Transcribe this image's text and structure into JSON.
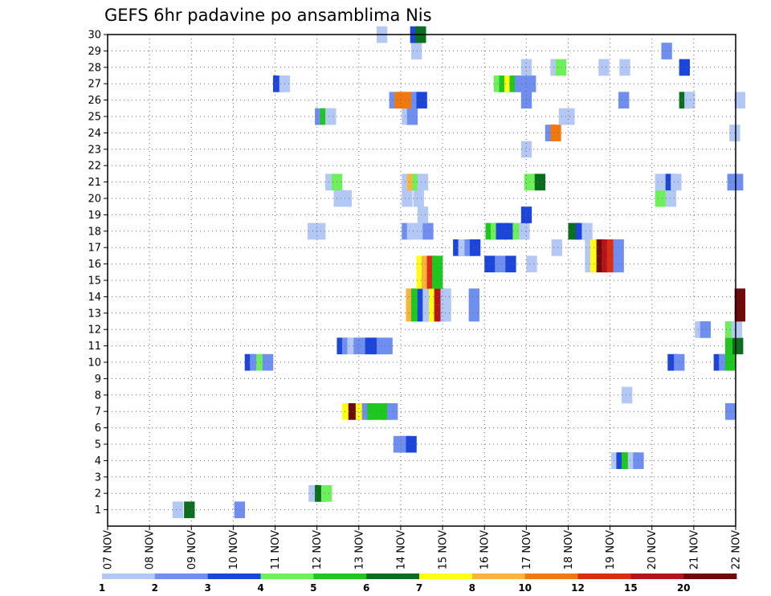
{
  "chart_data": {
    "type": "heatmap",
    "title": "GEFS 6hr padavine po ansamblima Nis",
    "xlabel": "",
    "ylabel": "",
    "x_tick_labels": [
      "07 NOV",
      "08 NOV",
      "09 NOV",
      "10 NOV",
      "11 NOV",
      "12 NOV",
      "13 NOV",
      "14 NOV",
      "15 NOV",
      "16 NOV",
      "17 NOV",
      "18 NOV",
      "19 NOV",
      "20 NOV",
      "21 NOV",
      "22 NOV"
    ],
    "y_tick_labels": [
      "1",
      "2",
      "3",
      "4",
      "5",
      "6",
      "7",
      "8",
      "9",
      "10",
      "11",
      "12",
      "13",
      "14",
      "15",
      "16",
      "17",
      "18",
      "19",
      "20",
      "21",
      "22",
      "23",
      "24",
      "25",
      "26",
      "27",
      "28",
      "29",
      "30"
    ],
    "x_range_steps": [
      0,
      60
    ],
    "y_range_members": [
      0,
      30
    ],
    "steps_per_day": 4,
    "grid": true,
    "colorbar": {
      "placement": "bottom",
      "labels": [
        "1",
        "2",
        "3",
        "4",
        "5",
        "6",
        "7",
        "8",
        "10",
        "12",
        "15",
        "20"
      ],
      "colors": [
        "#b4c8f5",
        "#6e8ef0",
        "#1c46d9",
        "#6ef05a",
        "#1ec81e",
        "#0b6e1e",
        "#ffff14",
        "#f8b43c",
        "#f0780f",
        "#dc2d14",
        "#b4141a",
        "#6e0a0a"
      ]
    },
    "cells": [
      [
        1,
        6.2,
        1
      ],
      [
        1,
        7.3,
        6
      ],
      [
        1,
        12.1,
        2
      ],
      [
        2,
        19.2,
        1
      ],
      [
        2,
        19.8,
        6
      ],
      [
        2,
        20.4,
        4
      ],
      [
        4,
        48.1,
        1
      ],
      [
        4,
        48.6,
        3
      ],
      [
        4,
        49.1,
        5
      ],
      [
        4,
        49.7,
        1
      ],
      [
        4,
        50.2,
        2
      ],
      [
        5,
        27.3,
        2
      ],
      [
        5,
        27.9,
        2
      ],
      [
        5,
        28.5,
        3
      ],
      [
        7,
        22.4,
        7
      ],
      [
        7,
        23.0,
        12
      ],
      [
        7,
        23.7,
        7
      ],
      [
        7,
        24.3,
        2
      ],
      [
        7,
        24.8,
        5
      ],
      [
        7,
        25.5,
        5
      ],
      [
        7,
        26.1,
        5
      ],
      [
        7,
        26.7,
        2
      ],
      [
        7,
        59.0,
        2
      ],
      [
        8,
        49.1,
        1
      ],
      [
        10,
        13.1,
        3
      ],
      [
        10,
        13.6,
        2
      ],
      [
        10,
        14.2,
        4
      ],
      [
        10,
        14.8,
        2
      ],
      [
        10,
        53.5,
        3
      ],
      [
        10,
        54.1,
        2
      ],
      [
        10,
        57.9,
        3
      ],
      [
        10,
        58.4,
        2
      ],
      [
        10,
        59.0,
        5
      ],
      [
        11,
        21.9,
        3
      ],
      [
        11,
        22.4,
        2
      ],
      [
        11,
        22.9,
        1
      ],
      [
        11,
        23.5,
        2
      ],
      [
        11,
        24.0,
        2
      ],
      [
        11,
        24.6,
        3
      ],
      [
        11,
        25.1,
        3
      ],
      [
        11,
        25.7,
        2
      ],
      [
        11,
        26.2,
        2
      ],
      [
        11,
        59.0,
        5
      ],
      [
        11,
        59.7,
        6
      ],
      [
        12,
        56.1,
        1
      ],
      [
        12,
        56.6,
        2
      ],
      [
        12,
        59.0,
        4
      ],
      [
        12,
        59.6,
        1
      ],
      [
        13,
        28.5,
        8
      ],
      [
        13,
        29.0,
        5
      ],
      [
        13,
        29.6,
        3
      ],
      [
        13,
        30.1,
        1
      ],
      [
        13,
        30.7,
        7
      ],
      [
        13,
        31.2,
        11
      ],
      [
        13,
        31.8,
        1
      ],
      [
        13,
        34.5,
        2
      ],
      [
        13,
        59.9,
        12
      ],
      [
        14,
        28.5,
        8
      ],
      [
        14,
        29.0,
        5
      ],
      [
        14,
        29.6,
        3
      ],
      [
        14,
        30.1,
        1
      ],
      [
        14,
        30.7,
        7
      ],
      [
        14,
        31.2,
        11
      ],
      [
        14,
        31.8,
        1
      ],
      [
        14,
        34.5,
        2
      ],
      [
        14,
        59.9,
        12
      ],
      [
        15,
        29.5,
        7
      ],
      [
        15,
        30.0,
        8
      ],
      [
        15,
        30.5,
        10
      ],
      [
        15,
        31.0,
        5
      ],
      [
        16,
        29.5,
        7
      ],
      [
        16,
        30.0,
        8
      ],
      [
        16,
        30.5,
        10
      ],
      [
        16,
        31.0,
        5
      ],
      [
        16,
        36.0,
        3
      ],
      [
        16,
        37.0,
        2
      ],
      [
        16,
        38.0,
        3
      ],
      [
        16,
        40.0,
        1
      ],
      [
        16,
        45.6,
        1
      ],
      [
        16,
        46.1,
        7
      ],
      [
        16,
        46.7,
        12
      ],
      [
        16,
        47.2,
        11
      ],
      [
        16,
        47.7,
        10
      ],
      [
        16,
        48.3,
        2
      ],
      [
        17,
        33.0,
        3
      ],
      [
        17,
        33.5,
        1
      ],
      [
        17,
        34.1,
        2
      ],
      [
        17,
        34.6,
        3
      ],
      [
        17,
        42.4,
        1
      ],
      [
        17,
        45.6,
        1
      ],
      [
        17,
        46.1,
        7
      ],
      [
        17,
        46.7,
        12
      ],
      [
        17,
        47.2,
        11
      ],
      [
        17,
        47.7,
        10
      ],
      [
        17,
        48.3,
        2
      ],
      [
        18,
        19.1,
        1
      ],
      [
        18,
        19.8,
        1
      ],
      [
        18,
        28.1,
        2
      ],
      [
        18,
        28.6,
        1
      ],
      [
        18,
        29.6,
        1
      ],
      [
        18,
        30.1,
        2
      ],
      [
        18,
        36.1,
        5
      ],
      [
        18,
        36.6,
        4
      ],
      [
        18,
        37.1,
        3
      ],
      [
        18,
        37.9,
        3
      ],
      [
        18,
        38.7,
        4
      ],
      [
        18,
        39.3,
        1
      ],
      [
        18,
        44.0,
        6
      ],
      [
        18,
        44.7,
        3
      ],
      [
        18,
        45.3,
        1
      ],
      [
        19,
        29.6,
        1
      ],
      [
        19,
        39.5,
        3
      ],
      [
        20,
        21.6,
        1
      ],
      [
        20,
        22.3,
        1
      ],
      [
        20,
        28.1,
        1
      ],
      [
        20,
        29.2,
        1
      ],
      [
        20,
        52.3,
        4
      ],
      [
        20,
        53.3,
        1
      ],
      [
        21,
        20.8,
        1
      ],
      [
        21,
        21.4,
        4
      ],
      [
        21,
        28.1,
        1
      ],
      [
        21,
        28.6,
        8
      ],
      [
        21,
        29.1,
        4
      ],
      [
        21,
        29.6,
        1
      ],
      [
        21,
        39.8,
        4
      ],
      [
        21,
        40.3,
        4
      ],
      [
        21,
        40.8,
        6
      ],
      [
        21,
        52.3,
        1
      ],
      [
        21,
        52.8,
        1
      ],
      [
        21,
        53.3,
        3
      ],
      [
        21,
        53.8,
        1
      ],
      [
        21,
        59.2,
        2
      ],
      [
        21,
        59.7,
        2
      ],
      [
        23,
        39.5,
        1
      ],
      [
        24,
        41.8,
        2
      ],
      [
        24,
        42.3,
        9
      ],
      [
        24,
        59.4,
        1
      ],
      [
        25,
        19.8,
        2
      ],
      [
        25,
        20.3,
        5
      ],
      [
        25,
        20.8,
        1
      ],
      [
        25,
        28.1,
        1
      ],
      [
        25,
        28.6,
        2
      ],
      [
        25,
        43.1,
        1
      ],
      [
        25,
        43.6,
        1
      ],
      [
        26,
        26.9,
        2
      ],
      [
        26,
        27.4,
        9
      ],
      [
        26,
        28.0,
        9
      ],
      [
        26,
        28.5,
        9
      ],
      [
        26,
        29.0,
        2
      ],
      [
        26,
        29.5,
        3
      ],
      [
        26,
        39.5,
        2
      ],
      [
        26,
        48.8,
        2
      ],
      [
        26,
        54.6,
        6
      ],
      [
        26,
        55.1,
        1
      ],
      [
        26,
        59.9,
        1
      ],
      [
        27,
        15.8,
        3
      ],
      [
        27,
        16.4,
        1
      ],
      [
        27,
        36.9,
        4
      ],
      [
        27,
        37.4,
        5
      ],
      [
        27,
        37.9,
        7
      ],
      [
        27,
        38.4,
        5
      ],
      [
        27,
        38.9,
        2
      ],
      [
        27,
        39.4,
        2
      ],
      [
        27,
        39.9,
        2
      ],
      [
        28,
        39.5,
        1
      ],
      [
        28,
        42.3,
        1
      ],
      [
        28,
        42.8,
        4
      ],
      [
        28,
        46.9,
        1
      ],
      [
        28,
        48.9,
        1
      ],
      [
        28,
        54.6,
        3
      ],
      [
        29,
        29.0,
        1
      ],
      [
        29,
        52.9,
        2
      ],
      [
        30,
        25.7,
        1
      ],
      [
        30,
        28.9,
        3
      ],
      [
        30,
        29.4,
        6
      ]
    ]
  }
}
